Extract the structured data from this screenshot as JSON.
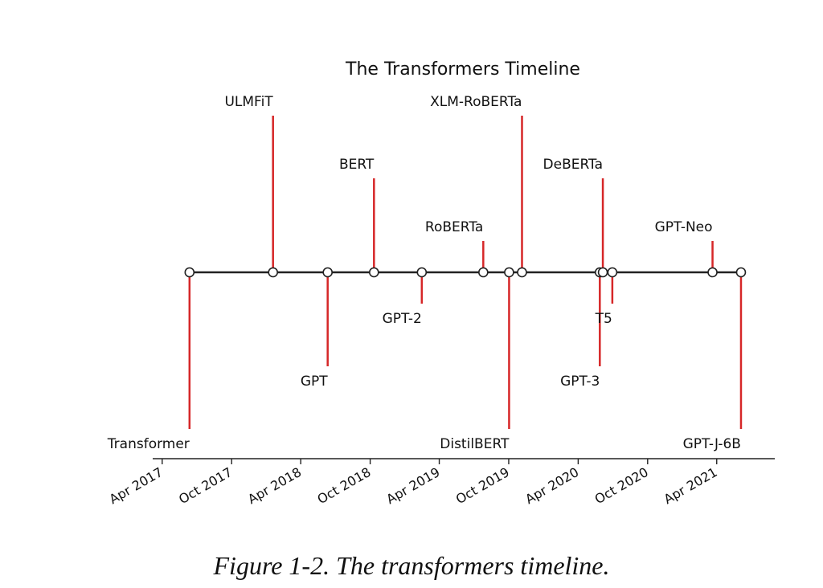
{
  "chart_data": {
    "type": "timeline",
    "title": "The Transformers Timeline",
    "x_ticks": [
      "Apr 2017",
      "Oct 2017",
      "Apr 2018",
      "Oct 2018",
      "Apr 2019",
      "Oct 2019",
      "Apr 2020",
      "Oct 2020",
      "Apr 2021"
    ],
    "xlim": [
      "2017-03-07",
      "2021-09-01"
    ],
    "events": [
      {
        "label": "Transformer",
        "date": "2017-06-12",
        "level": -5
      },
      {
        "label": "ULMFiT",
        "date": "2018-01-18",
        "level": 5
      },
      {
        "label": "GPT",
        "date": "2018-06-11",
        "level": -3
      },
      {
        "label": "BERT",
        "date": "2018-10-11",
        "level": 3
      },
      {
        "label": "GPT-2",
        "date": "2019-02-14",
        "level": -1
      },
      {
        "label": "RoBERTa",
        "date": "2019-07-26",
        "level": 1
      },
      {
        "label": "DistilBERT",
        "date": "2019-10-02",
        "level": -5
      },
      {
        "label": "XLM-RoBERTa",
        "date": "2019-11-05",
        "level": 5
      },
      {
        "label": "GPT-3",
        "date": "2020-05-28",
        "level": -3
      },
      {
        "label": "DeBERTa",
        "date": "2020-06-05",
        "level": 3
      },
      {
        "label": "T5",
        "date": "2020-06-30",
        "level": -1
      },
      {
        "label": "GPT-Neo",
        "date": "2021-03-21",
        "level": 1
      },
      {
        "label": "GPT-J-6B",
        "date": "2021-06-04",
        "level": -5
      }
    ],
    "stem_color": "#d62728",
    "timeline_color": "#222222"
  },
  "caption": "Figure 1-2. The transformers timeline."
}
